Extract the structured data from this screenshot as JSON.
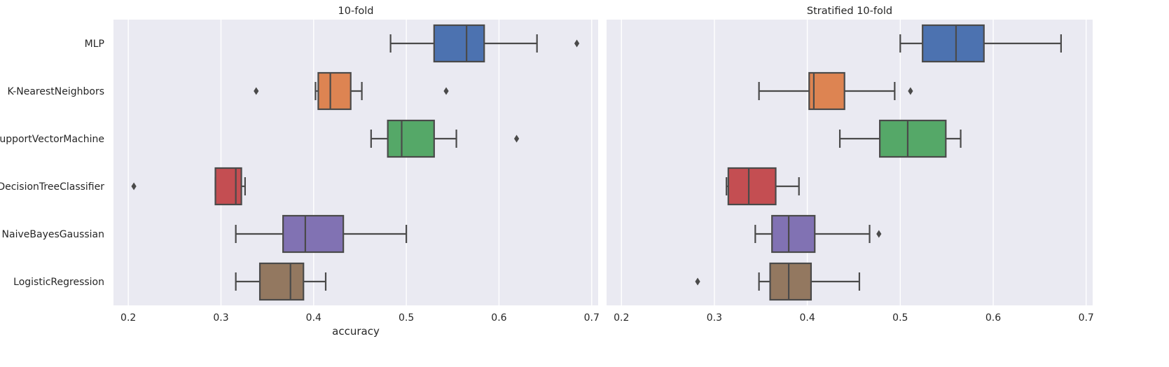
{
  "chart_data": {
    "type": "box",
    "categories": [
      "MLP",
      "K-NearestNeighbors",
      "SupportVectorMachine",
      "DecisionTreeClassifier",
      "NaiveBayesGaussian",
      "LogisticRegression"
    ],
    "colors": [
      "#4c72b0",
      "#dd8452",
      "#55a868",
      "#c44e52",
      "#8172b3",
      "#937860"
    ],
    "xlim": [
      0.184,
      0.707
    ],
    "xticks": [
      0.2,
      0.3,
      0.4,
      0.5,
      0.6,
      0.7
    ],
    "xtick_labels": [
      "0.2",
      "0.3",
      "0.4",
      "0.5",
      "0.6",
      "0.7"
    ],
    "grid": true,
    "panels": [
      {
        "title": "10-fold",
        "xlabel": "accuracy",
        "boxes": [
          {
            "whisker_low": 0.483,
            "q1": 0.53,
            "median": 0.565,
            "q3": 0.584,
            "whisker_high": 0.641,
            "outliers": [
              0.684
            ]
          },
          {
            "whisker_low": 0.402,
            "q1": 0.405,
            "median": 0.418,
            "q3": 0.44,
            "whisker_high": 0.452,
            "outliers": [
              0.338,
              0.543
            ]
          },
          {
            "whisker_low": 0.462,
            "q1": 0.48,
            "median": 0.495,
            "q3": 0.53,
            "whisker_high": 0.554,
            "outliers": [
              0.619
            ]
          },
          {
            "whisker_low": 0.294,
            "q1": 0.294,
            "median": 0.316,
            "q3": 0.322,
            "whisker_high": 0.326,
            "outliers": [
              0.206
            ]
          },
          {
            "whisker_low": 0.316,
            "q1": 0.367,
            "median": 0.391,
            "q3": 0.432,
            "whisker_high": 0.5,
            "outliers": []
          },
          {
            "whisker_low": 0.316,
            "q1": 0.342,
            "median": 0.375,
            "q3": 0.389,
            "whisker_high": 0.413,
            "outliers": []
          }
        ]
      },
      {
        "title": "Stratified 10-fold",
        "xlabel": "",
        "boxes": [
          {
            "whisker_low": 0.5,
            "q1": 0.524,
            "median": 0.56,
            "q3": 0.59,
            "whisker_high": 0.673,
            "outliers": []
          },
          {
            "whisker_low": 0.348,
            "q1": 0.402,
            "median": 0.407,
            "q3": 0.44,
            "whisker_high": 0.494,
            "outliers": [
              0.511
            ]
          },
          {
            "whisker_low": 0.435,
            "q1": 0.478,
            "median": 0.508,
            "q3": 0.549,
            "whisker_high": 0.565,
            "outliers": []
          },
          {
            "whisker_low": 0.313,
            "q1": 0.315,
            "median": 0.337,
            "q3": 0.366,
            "whisker_high": 0.391,
            "outliers": []
          },
          {
            "whisker_low": 0.344,
            "q1": 0.362,
            "median": 0.38,
            "q3": 0.408,
            "whisker_high": 0.467,
            "outliers": [
              0.477
            ]
          },
          {
            "whisker_low": 0.348,
            "q1": 0.36,
            "median": 0.38,
            "q3": 0.404,
            "whisker_high": 0.456,
            "outliers": [
              0.282
            ]
          }
        ]
      }
    ]
  }
}
